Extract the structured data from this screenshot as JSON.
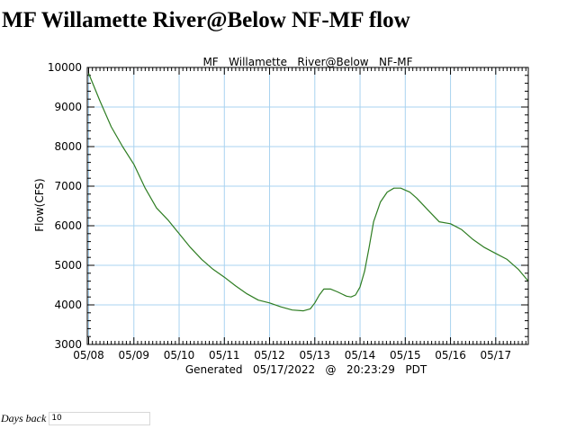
{
  "page": {
    "title": "MF Willamette River@Below NF-MF flow"
  },
  "controls": {
    "days_back_label": "Days back",
    "days_back_value": "10"
  },
  "colors": {
    "series": "#2e7d22",
    "grid": "#a9d3f0",
    "axis": "#000000"
  },
  "chart_data": {
    "type": "line",
    "title": "MF   Willamette   River@Below   NF-MF",
    "footer": "Generated   05/17/2022   @   20:23:29   PDT",
    "xlabel": "",
    "ylabel": "Flow(CFS)",
    "x_unit": "days since 05/08 00:00",
    "xlim": [
      -0.03,
      9.72
    ],
    "ylim": [
      3000,
      10000
    ],
    "xticks": [
      {
        "x": 0,
        "label": "05/08"
      },
      {
        "x": 1,
        "label": "05/09"
      },
      {
        "x": 2,
        "label": "05/10"
      },
      {
        "x": 3,
        "label": "05/11"
      },
      {
        "x": 4,
        "label": "05/12"
      },
      {
        "x": 5,
        "label": "05/13"
      },
      {
        "x": 6,
        "label": "05/14"
      },
      {
        "x": 7,
        "label": "05/15"
      },
      {
        "x": 8,
        "label": "05/16"
      },
      {
        "x": 9,
        "label": "05/17"
      }
    ],
    "yticks": [
      3000,
      4000,
      5000,
      6000,
      7000,
      8000,
      9000,
      10000
    ],
    "grid": true,
    "series": [
      {
        "name": "Flow",
        "x": [
          0.0,
          0.25,
          0.5,
          0.75,
          1.0,
          1.25,
          1.5,
          1.75,
          2.0,
          2.25,
          2.5,
          2.75,
          3.0,
          3.25,
          3.5,
          3.75,
          4.0,
          4.25,
          4.5,
          4.75,
          4.9,
          5.0,
          5.1,
          5.2,
          5.35,
          5.5,
          5.7,
          5.8,
          5.9,
          6.0,
          6.1,
          6.2,
          6.3,
          6.45,
          6.6,
          6.75,
          6.9,
          7.0,
          7.1,
          7.25,
          7.5,
          7.75,
          8.0,
          8.25,
          8.5,
          8.75,
          9.0,
          9.25,
          9.5,
          9.72
        ],
        "values": [
          9850,
          9150,
          8500,
          8000,
          7550,
          6950,
          6450,
          6150,
          5800,
          5450,
          5150,
          4900,
          4700,
          4480,
          4280,
          4120,
          4050,
          3950,
          3870,
          3850,
          3900,
          4050,
          4250,
          4400,
          4400,
          4330,
          4220,
          4200,
          4250,
          4450,
          4850,
          5450,
          6100,
          6600,
          6850,
          6950,
          6950,
          6900,
          6850,
          6700,
          6400,
          6100,
          6050,
          5900,
          5650,
          5450,
          5300,
          5150,
          4900,
          4600
        ]
      }
    ]
  }
}
